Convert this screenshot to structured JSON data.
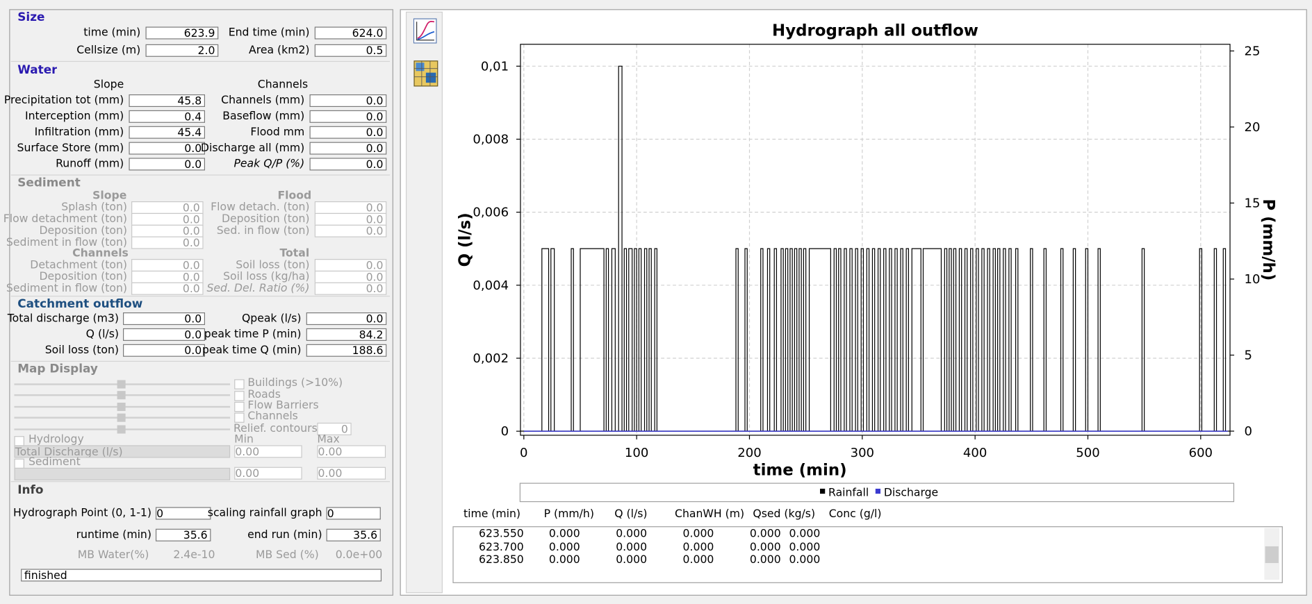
{
  "size": {
    "title": "Size",
    "rows": [
      [
        "time (min)",
        "623.9",
        "End time (min)",
        "624.0"
      ],
      [
        "Cellsize (m)",
        "2.0",
        "Area (km2)",
        "0.5"
      ]
    ]
  },
  "water": {
    "title": "Water",
    "headers": [
      "Slope",
      "Channels"
    ],
    "rows": [
      [
        "Precipitation tot (mm)",
        "45.8",
        "Channels (mm)",
        "0.0"
      ],
      [
        "Interception (mm)",
        "0.4",
        "Baseflow (mm)",
        "0.0"
      ],
      [
        "Infiltration (mm)",
        "45.4",
        "Flood mm",
        "0.0"
      ],
      [
        "Surface Store (mm)",
        "0.0",
        "Discharge all (mm)",
        "0.0"
      ],
      [
        "Runoff (mm)",
        "0.0",
        "Peak Q/P (%)",
        "0.0"
      ]
    ]
  },
  "sediment": {
    "title": "Sediment",
    "headers": [
      "Slope",
      "Flood"
    ],
    "rows": [
      [
        "Splash (ton)",
        "0.0",
        "Flow detach. (ton)",
        "0.0"
      ],
      [
        "Flow detachment (ton)",
        "0.0",
        "Deposition (ton)",
        "0.0"
      ],
      [
        "Deposition (ton)",
        "0.0",
        "Sed. in flow (ton)",
        "0.0"
      ],
      [
        "Sediment in flow (ton)",
        "0.0"
      ]
    ],
    "headers2": [
      "Channels",
      "Total"
    ],
    "rows2": [
      [
        "Detachment (ton)",
        "0.0",
        "Soil loss (ton)",
        "0.0"
      ],
      [
        "Deposition (ton)",
        "0.0",
        "Soil loss (kg/ha)",
        "0.0"
      ],
      [
        "Sediment in flow (ton)",
        "0.0",
        "Sed. Del. Ratio  (%)",
        "0.0"
      ]
    ]
  },
  "outflow": {
    "title": "Catchment outflow",
    "rows": [
      [
        "Total discharge (m3)",
        "0.0",
        "Qpeak (l/s)",
        "0.0"
      ],
      [
        "Q (l/s)",
        "0.0",
        "peak time P (min)",
        "84.2"
      ],
      [
        "Soil loss (ton)",
        "0.0",
        "peak time Q (min)",
        "188.6"
      ]
    ]
  },
  "map_display": {
    "title": "Map Display",
    "checks": [
      "Buildings (>10%)",
      "Roads",
      "Flow Barriers",
      "Channels"
    ],
    "relief": "Relief. contours:",
    "relief_value": "0",
    "hydrology": "Hydrology",
    "min": "Min",
    "max": "Max",
    "hydrology_map": "Total Discharge (l/s)",
    "hydrology_min": "0.00",
    "hydrology_max": "0.00",
    "sediment": "Sediment",
    "sediment_min": "0.00",
    "sediment_max": "0.00"
  },
  "info": {
    "title": "Info",
    "hydrograph_point": "Hydrograph Point (0, 1-1)",
    "hydrograph_point_value": "0",
    "scaling": "scaling rainfall graph",
    "scaling_value": "0",
    "runtime": "runtime (min)",
    "runtime_value": "35.6",
    "end_run": "end run (min)",
    "end_run_value": "35.6",
    "mb_water": "MB Water(%)",
    "mb_water_value": "2.4e-10",
    "mb_sed": "MB Sed (%)",
    "mb_sed_value": "0.0e+00",
    "status": "finished"
  },
  "hydrograph": {
    "type": "line",
    "title": "Hydrograph all outflow",
    "xlabel": "time (min)",
    "ylabel": "Q (l/s)",
    "y2label": "P (mm/h)",
    "grid": true,
    "xlim": [
      -3,
      626
    ],
    "xticks": [
      0,
      100,
      200,
      300,
      400,
      500,
      600
    ],
    "ylim": [
      -0.00011,
      0.0106
    ],
    "yticks": [
      0,
      {
        "value": 0.002,
        "label": "0,002"
      },
      {
        "value": 0.004,
        "label": "0,004"
      },
      {
        "value": 0.006,
        "label": "0,006"
      },
      {
        "value": 0.008,
        "label": "0,008"
      },
      {
        "value": 0.01,
        "label": "0,01"
      }
    ],
    "y2lim": [
      -0.27,
      25.44
    ],
    "y2ticks": [
      0,
      5,
      10,
      15,
      20,
      25
    ],
    "series": [
      {
        "name": "Rainfall",
        "color": "#000000",
        "axis": "y2",
        "intervals": [
          [
            16,
            22,
            12
          ],
          [
            24,
            27,
            12
          ],
          [
            42,
            44,
            12
          ],
          [
            50,
            71,
            12
          ],
          [
            73,
            75,
            12
          ],
          [
            78,
            81,
            12
          ],
          [
            84,
            87,
            24
          ],
          [
            89,
            91,
            12
          ],
          [
            93,
            96,
            12
          ],
          [
            98,
            100,
            12
          ],
          [
            102,
            104,
            12
          ],
          [
            107,
            109,
            12
          ],
          [
            111,
            113,
            12
          ],
          [
            116,
            118,
            12
          ],
          [
            188,
            190,
            12
          ],
          [
            196,
            198,
            12
          ],
          [
            210,
            212,
            12
          ],
          [
            216,
            218,
            12
          ],
          [
            222,
            224,
            12
          ],
          [
            228,
            230,
            12
          ],
          [
            232,
            234,
            12
          ],
          [
            236,
            238,
            12
          ],
          [
            240,
            242,
            12
          ],
          [
            244,
            246,
            12
          ],
          [
            248,
            250,
            12
          ],
          [
            253,
            272,
            12
          ],
          [
            275,
            277,
            12
          ],
          [
            279,
            281,
            12
          ],
          [
            284,
            286,
            12
          ],
          [
            289,
            291,
            12
          ],
          [
            294,
            296,
            12
          ],
          [
            299,
            301,
            12
          ],
          [
            304,
            306,
            12
          ],
          [
            309,
            311,
            12
          ],
          [
            314,
            316,
            12
          ],
          [
            319,
            321,
            12
          ],
          [
            324,
            326,
            12
          ],
          [
            329,
            331,
            12
          ],
          [
            334,
            336,
            12
          ],
          [
            339,
            341,
            12
          ],
          [
            344,
            352,
            12
          ],
          [
            354,
            370,
            12
          ],
          [
            373,
            375,
            12
          ],
          [
            377,
            379,
            12
          ],
          [
            381,
            383,
            12
          ],
          [
            386,
            388,
            12
          ],
          [
            391,
            393,
            12
          ],
          [
            396,
            398,
            12
          ],
          [
            401,
            403,
            12
          ],
          [
            406,
            408,
            12
          ],
          [
            411,
            413,
            12
          ],
          [
            416,
            418,
            12
          ],
          [
            420,
            422,
            12
          ],
          [
            425,
            427,
            12
          ],
          [
            430,
            432,
            12
          ],
          [
            436,
            438,
            12
          ],
          [
            449,
            451,
            12
          ],
          [
            461,
            463,
            12
          ],
          [
            476,
            478,
            12
          ],
          [
            487,
            489,
            12
          ],
          [
            498,
            500,
            12
          ],
          [
            509,
            511,
            12
          ],
          [
            548,
            550,
            12
          ],
          [
            599,
            601,
            12
          ],
          [
            612,
            614,
            12
          ],
          [
            620,
            622,
            12
          ]
        ]
      },
      {
        "name": "Discharge",
        "color": "#3a3ad0",
        "axis": "y",
        "x": [
          0,
          624
        ],
        "values": [
          0,
          0
        ]
      }
    ]
  },
  "output_table": {
    "headers": [
      "time (min)",
      "P (mm/h)",
      "Q (l/s)",
      "ChanWH (m)",
      "Qsed (kg/s)",
      "Conc (g/l)"
    ],
    "rows": [
      [
        "623.550",
        "0.000",
        "0.000",
        "0.000",
        "0.000",
        "0.000"
      ],
      [
        "623.700",
        "0.000",
        "0.000",
        "0.000",
        "0.000",
        "0.000"
      ],
      [
        "623.850",
        "0.000",
        "0.000",
        "0.000",
        "0.000",
        "0.000"
      ]
    ]
  }
}
